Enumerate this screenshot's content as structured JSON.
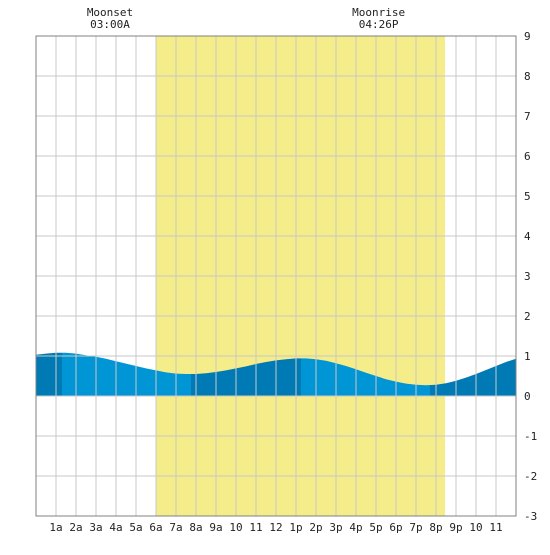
{
  "chart_data": {
    "type": "area",
    "title": "",
    "xlabel": "",
    "ylabel": "",
    "xlim": [
      0,
      24
    ],
    "ylim": [
      -3,
      9
    ],
    "y_ticks": [
      -3,
      -2,
      -1,
      0,
      1,
      2,
      3,
      4,
      5,
      6,
      7,
      8,
      9
    ],
    "x_ticks": [
      {
        "hour": 1,
        "label": "1a"
      },
      {
        "hour": 2,
        "label": "2a"
      },
      {
        "hour": 3,
        "label": "3a"
      },
      {
        "hour": 4,
        "label": "4a"
      },
      {
        "hour": 5,
        "label": "5a"
      },
      {
        "hour": 6,
        "label": "6a"
      },
      {
        "hour": 7,
        "label": "7a"
      },
      {
        "hour": 8,
        "label": "8a"
      },
      {
        "hour": 9,
        "label": "9a"
      },
      {
        "hour": 10,
        "label": "10"
      },
      {
        "hour": 11,
        "label": "11"
      },
      {
        "hour": 12,
        "label": "12"
      },
      {
        "hour": 13,
        "label": "1p"
      },
      {
        "hour": 14,
        "label": "2p"
      },
      {
        "hour": 15,
        "label": "3p"
      },
      {
        "hour": 16,
        "label": "4p"
      },
      {
        "hour": 17,
        "label": "5p"
      },
      {
        "hour": 18,
        "label": "6p"
      },
      {
        "hour": 19,
        "label": "7p"
      },
      {
        "hour": 20,
        "label": "8p"
      },
      {
        "hour": 21,
        "label": "9p"
      },
      {
        "hour": 22,
        "label": "10"
      },
      {
        "hour": 23,
        "label": "11"
      }
    ],
    "grid": true,
    "daylight": {
      "start_hour": 6.0,
      "end_hour": 20.45
    },
    "annotations": [
      {
        "name": "moonset",
        "label": "Moonset",
        "time": "03:00A",
        "hour": 3.0
      },
      {
        "name": "moonrise",
        "label": "Moonrise",
        "time": "04:26P",
        "hour": 16.43
      }
    ],
    "tide_bands": [
      {
        "start_hour": 0.0,
        "end_hour": 1.3,
        "shade": "dark"
      },
      {
        "start_hour": 1.3,
        "end_hour": 7.75,
        "shade": "light"
      },
      {
        "start_hour": 7.75,
        "end_hour": 13.25,
        "shade": "dark"
      },
      {
        "start_hour": 13.25,
        "end_hour": 19.7,
        "shade": "light"
      },
      {
        "start_hour": 19.7,
        "end_hour": 24.0,
        "shade": "dark"
      }
    ],
    "series": [
      {
        "x": [
          0,
          0.5,
          1,
          1.5,
          2,
          2.5,
          3,
          3.5,
          4,
          4.5,
          5,
          5.5,
          6,
          6.5,
          7,
          7.5,
          8,
          8.5,
          9,
          9.5,
          10,
          10.5,
          11,
          11.5,
          12,
          12.5,
          13,
          13.5,
          14,
          14.5,
          15,
          15.5,
          16,
          16.5,
          17,
          17.5,
          18,
          18.5,
          19,
          19.5,
          20,
          20.5,
          21,
          21.5,
          22,
          22.5,
          23,
          23.5,
          24
        ],
        "y": [
          1.03,
          1.06,
          1.08,
          1.08,
          1.06,
          1.02,
          0.98,
          0.93,
          0.87,
          0.81,
          0.75,
          0.69,
          0.64,
          0.59,
          0.56,
          0.55,
          0.55,
          0.57,
          0.6,
          0.64,
          0.69,
          0.74,
          0.8,
          0.85,
          0.89,
          0.92,
          0.94,
          0.94,
          0.92,
          0.88,
          0.82,
          0.75,
          0.67,
          0.58,
          0.5,
          0.42,
          0.36,
          0.31,
          0.28,
          0.27,
          0.28,
          0.32,
          0.38,
          0.46,
          0.55,
          0.65,
          0.75,
          0.85,
          0.93
        ]
      }
    ],
    "colors": {
      "daylight": "#f5ec8a",
      "tide_light": "#0096d6",
      "tide_dark": "#007ab5",
      "grid": "#c8c8c8",
      "frame": "#808080"
    }
  }
}
